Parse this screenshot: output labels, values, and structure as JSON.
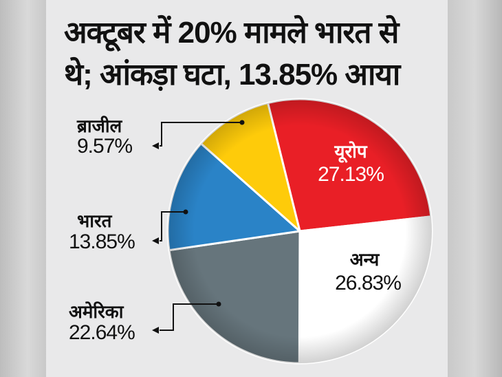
{
  "title_line1": "अक्टूबर में 20% मामले भारत से",
  "title_line2": "थे; आंकड़ा घटा, 13.85% आया",
  "chart_data": {
    "type": "pie",
    "title": "अक्टूबर में 20% मामले भारत से थे; आंकड़ा घटा, 13.85% आया",
    "start_angle_deg": -14,
    "direction": "clockwise",
    "slices": [
      {
        "label": "यूरोप",
        "value": 27.13,
        "display": "27.13%",
        "color": "#e91f26"
      },
      {
        "label": "अन्य",
        "value": 26.83,
        "display": "26.83%",
        "color": "#ffffff"
      },
      {
        "label": "अमेरिका",
        "value": 22.64,
        "display": "22.64%",
        "color": "#66757c"
      },
      {
        "label": "भारत",
        "value": 13.85,
        "display": "13.85%",
        "color": "#2a83c7"
      },
      {
        "label": "ब्राजील",
        "value": 9.57,
        "display": "9.57%",
        "color": "#fecb0a"
      }
    ]
  }
}
